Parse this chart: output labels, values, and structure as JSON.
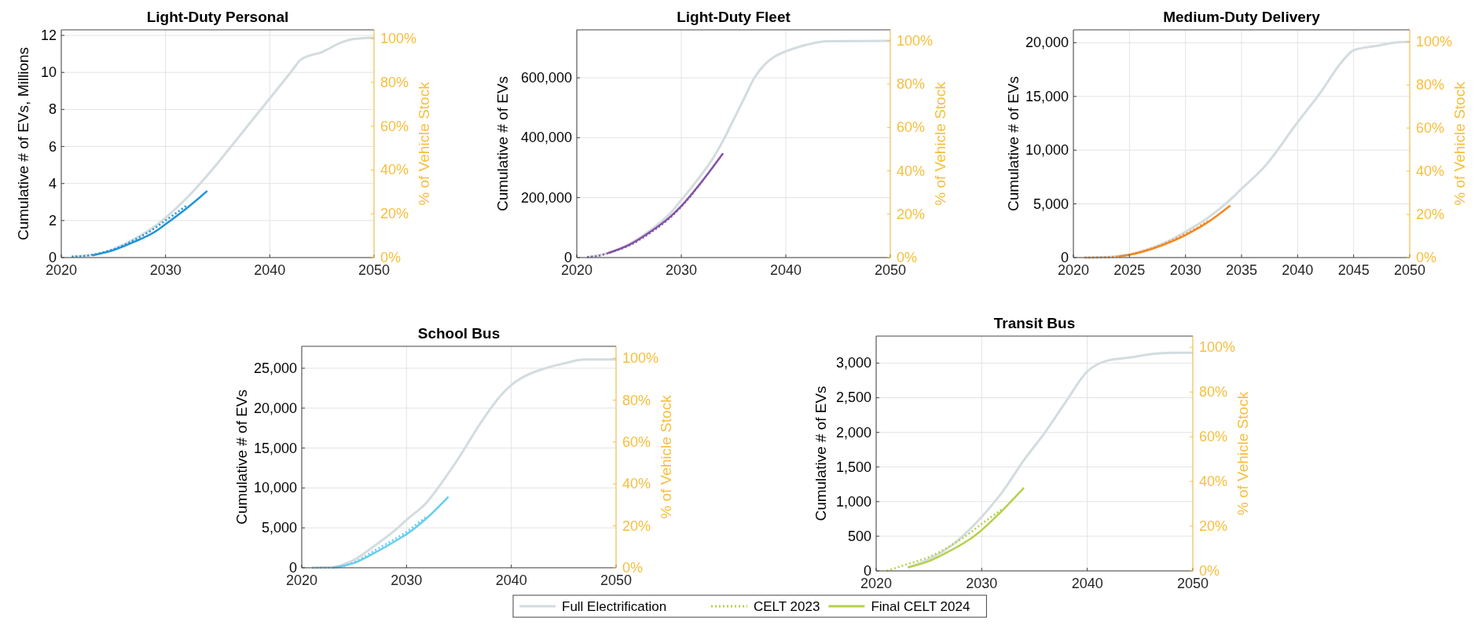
{
  "chart_data": [
    {
      "type": "line",
      "title": "Light-Duty Personal",
      "ylabel": "Cumulative # of EVs, Millions",
      "y2label": "% of Vehicle Stock",
      "xlim": [
        2020,
        2050
      ],
      "xticks": [
        2020,
        2030,
        2040,
        2050
      ],
      "ylim": [
        0,
        12.3
      ],
      "yticks": [
        0,
        2,
        4,
        6,
        8,
        10,
        12
      ],
      "y2lim": [
        0,
        104
      ],
      "y2ticks": [
        {
          "value": 0,
          "label": "0%"
        },
        {
          "value": 20,
          "label": "20%"
        },
        {
          "value": 40,
          "label": "40%"
        },
        {
          "value": 60,
          "label": "60%"
        },
        {
          "value": 80,
          "label": "80%"
        },
        {
          "value": 100,
          "label": "100%"
        }
      ],
      "grid": true,
      "series": [
        {
          "color": "#d3dcdf",
          "line_style": "solid",
          "x": [
            2021,
            2023,
            2025,
            2027,
            2029,
            2030,
            2032,
            2033,
            2035,
            2036,
            2038,
            2040,
            2042,
            2043,
            2045,
            2047,
            2048,
            2050
          ],
          "values": [
            0.05,
            0.15,
            0.45,
            1.0,
            1.7,
            2.15,
            3.2,
            3.8,
            5.1,
            5.8,
            7.2,
            8.6,
            10.0,
            10.7,
            11.1,
            11.65,
            11.8,
            11.88
          ]
        },
        {
          "color": "#1f93d6",
          "line_style": "dotted",
          "x": [
            2021,
            2023,
            2025,
            2027,
            2029,
            2030,
            2031,
            2032
          ],
          "values": [
            0.05,
            0.15,
            0.45,
            0.95,
            1.6,
            2.0,
            2.4,
            2.8
          ]
        },
        {
          "color": "#1f93d6",
          "line_style": "solid",
          "x": [
            2023,
            2025,
            2027,
            2029,
            2030,
            2032,
            2034
          ],
          "values": [
            0.12,
            0.4,
            0.85,
            1.4,
            1.8,
            2.65,
            3.6
          ]
        }
      ]
    },
    {
      "type": "line",
      "title": "Light-Duty Fleet",
      "ylabel": "Cumulative # of EVs",
      "y2label": "% of Vehicle Stock",
      "xlim": [
        2020,
        2050
      ],
      "xticks": [
        2020,
        2030,
        2040,
        2050
      ],
      "ylim": [
        0,
        760000
      ],
      "yticks": [
        0,
        {
          "value": 200000,
          "label": "200,000"
        },
        {
          "value": 400000,
          "label": "400,000"
        },
        {
          "value": 600000,
          "label": "600,000"
        }
      ],
      "y2lim": [
        0,
        105
      ],
      "y2ticks": [
        {
          "value": 0,
          "label": "0%"
        },
        {
          "value": 20,
          "label": "20%"
        },
        {
          "value": 40,
          "label": "40%"
        },
        {
          "value": 60,
          "label": "60%"
        },
        {
          "value": 80,
          "label": "80%"
        },
        {
          "value": 100,
          "label": "100%"
        }
      ],
      "grid": true,
      "series": [
        {
          "color": "#d3dcdf",
          "line_style": "solid",
          "x": [
            2021,
            2023,
            2025,
            2027,
            2029,
            2030,
            2032,
            2033,
            2034,
            2035,
            2036,
            2037,
            2038,
            2039,
            2040,
            2042,
            2044,
            2050
          ],
          "values": [
            2000,
            15000,
            45000,
            90000,
            150000,
            192000,
            280000,
            330000,
            390000,
            460000,
            530000,
            600000,
            645000,
            672000,
            688000,
            710000,
            722000,
            723000
          ]
        },
        {
          "color": "#8352a6",
          "line_style": "dotted",
          "x": [
            2021,
            2022,
            2023,
            2025,
            2027,
            2029,
            2030,
            2031,
            2032
          ],
          "values": [
            2000,
            5000,
            15000,
            40000,
            82000,
            135000,
            170000,
            210000,
            255000
          ]
        },
        {
          "color": "#8352a6",
          "line_style": "solid",
          "x": [
            2023,
            2025,
            2027,
            2029,
            2030,
            2032,
            2034
          ],
          "values": [
            15000,
            42000,
            85000,
            138000,
            172000,
            255000,
            348000
          ]
        }
      ]
    },
    {
      "type": "line",
      "title": "Medium-Duty Delivery",
      "ylabel": "Cumulative # of EVs",
      "y2label": "% of Vehicle Stock",
      "xlim": [
        2020,
        2050
      ],
      "xticks": [
        2020,
        2025,
        2030,
        2035,
        2040,
        2045,
        2050
      ],
      "ylim": [
        0,
        21200
      ],
      "yticks": [
        0,
        {
          "value": 5000,
          "label": "5,000"
        },
        {
          "value": 10000,
          "label": "10,000"
        },
        {
          "value": 15000,
          "label": "15,000"
        },
        {
          "value": 20000,
          "label": "20,000"
        }
      ],
      "y2lim": [
        0,
        105.5
      ],
      "y2ticks": [
        {
          "value": 0,
          "label": "0%"
        },
        {
          "value": 20,
          "label": "20%"
        },
        {
          "value": 40,
          "label": "40%"
        },
        {
          "value": 60,
          "label": "60%"
        },
        {
          "value": 80,
          "label": "80%"
        },
        {
          "value": 100,
          "label": "100%"
        }
      ],
      "grid": true,
      "series": [
        {
          "color": "#d3dcdf",
          "line_style": "solid",
          "x": [
            2021,
            2023,
            2025,
            2027,
            2029,
            2030,
            2032,
            2033,
            2034,
            2035,
            2037,
            2040,
            2042,
            2044,
            2045,
            2047,
            2049,
            2050
          ],
          "values": [
            0,
            50,
            300,
            900,
            1800,
            2400,
            3700,
            4500,
            5400,
            6400,
            8400,
            12600,
            15300,
            18300,
            19300,
            19700,
            20050,
            20090
          ]
        },
        {
          "color": "#f5871f",
          "line_style": "dotted",
          "x": [
            2021,
            2023,
            2025,
            2027,
            2029,
            2030,
            2031,
            2032
          ],
          "values": [
            0,
            30,
            280,
            850,
            1700,
            2200,
            2750,
            3400
          ]
        },
        {
          "color": "#f5871f",
          "line_style": "solid",
          "x": [
            2024,
            2025,
            2027,
            2029,
            2030,
            2032,
            2034
          ],
          "values": [
            100,
            250,
            800,
            1600,
            2100,
            3300,
            4850
          ]
        }
      ]
    },
    {
      "type": "line",
      "title": "School Bus",
      "ylabel": "Cumulative # of EVs",
      "y2label": "% of Vehicle Stock",
      "xlim": [
        2020,
        2050
      ],
      "xticks": [
        2020,
        2030,
        2040,
        2050
      ],
      "ylim": [
        0,
        27750
      ],
      "yticks": [
        0,
        {
          "value": 5000,
          "label": "5,000"
        },
        {
          "value": 10000,
          "label": "10,000"
        },
        {
          "value": 15000,
          "label": "15,000"
        },
        {
          "value": 20000,
          "label": "20,000"
        },
        {
          "value": 25000,
          "label": "25,000"
        }
      ],
      "y2lim": [
        0,
        105.7
      ],
      "y2ticks": [
        {
          "value": 0,
          "label": "0%"
        },
        {
          "value": 20,
          "label": "20%"
        },
        {
          "value": 40,
          "label": "40%"
        },
        {
          "value": 60,
          "label": "60%"
        },
        {
          "value": 80,
          "label": "80%"
        },
        {
          "value": 100,
          "label": "100%"
        }
      ],
      "grid": true,
      "series": [
        {
          "color": "#d3dcdf",
          "line_style": "solid",
          "x": [
            2021,
            2023,
            2025,
            2027,
            2029,
            2030,
            2032,
            2033,
            2035,
            2037,
            2039,
            2040,
            2041,
            2043,
            2045,
            2047,
            2050
          ],
          "values": [
            0,
            100,
            1000,
            2800,
            4800,
            6000,
            8300,
            10000,
            13800,
            18000,
            21600,
            22900,
            23800,
            24900,
            25600,
            26100,
            26100
          ]
        },
        {
          "color": "#67cdf2",
          "line_style": "dotted",
          "x": [
            2021,
            2023,
            2025,
            2027,
            2029,
            2030,
            2031,
            2032
          ],
          "values": [
            0,
            0,
            700,
            2200,
            3700,
            4500,
            5500,
            6500
          ]
        },
        {
          "color": "#67cdf2",
          "line_style": "solid",
          "x": [
            2023,
            2025,
            2027,
            2029,
            2030,
            2032,
            2034
          ],
          "values": [
            0,
            600,
            1900,
            3400,
            4200,
            6300,
            8900
          ]
        }
      ]
    },
    {
      "type": "line",
      "title": "Transit Bus",
      "ylabel": "Cumulative # of EVs",
      "y2label": "% of Vehicle Stock",
      "xlim": [
        2020,
        2050
      ],
      "xticks": [
        2020,
        2030,
        2040,
        2050
      ],
      "ylim": [
        0,
        3390
      ],
      "yticks": [
        0,
        500,
        {
          "value": 1000,
          "label": "1,000"
        },
        {
          "value": 1500,
          "label": "1,500"
        },
        {
          "value": 2000,
          "label": "2,000"
        },
        {
          "value": 2500,
          "label": "2,500"
        },
        {
          "value": 3000,
          "label": "3,000"
        }
      ],
      "y2lim": [
        0,
        105
      ],
      "y2ticks": [
        {
          "value": 0,
          "label": "0%"
        },
        {
          "value": 20,
          "label": "20%"
        },
        {
          "value": 40,
          "label": "40%"
        },
        {
          "value": 60,
          "label": "60%"
        },
        {
          "value": 80,
          "label": "80%"
        },
        {
          "value": 100,
          "label": "100%"
        }
      ],
      "grid": true,
      "legend": "bottom",
      "series": [
        {
          "name": "Full Electrification",
          "color": "#d3dcdf",
          "line_style": "solid",
          "x": [
            2023,
            2025,
            2027,
            2029,
            2030,
            2032,
            2034,
            2036,
            2038,
            2040,
            2042,
            2044,
            2046,
            2048,
            2050
          ],
          "values": [
            50,
            170,
            350,
            620,
            780,
            1150,
            1600,
            2000,
            2450,
            2880,
            3040,
            3080,
            3130,
            3150,
            3150
          ]
        },
        {
          "name": "CELT 2023",
          "color": "#b5d14b",
          "line_style": "dotted",
          "x": [
            2021,
            2023,
            2025,
            2027,
            2029,
            2030,
            2031,
            2032
          ],
          "values": [
            0,
            100,
            200,
            360,
            560,
            680,
            790,
            900
          ]
        },
        {
          "name": "Final CELT 2024",
          "color": "#b5d14b",
          "line_style": "solid",
          "x": [
            2023,
            2025,
            2027,
            2029,
            2030,
            2032,
            2034
          ],
          "values": [
            50,
            140,
            290,
            470,
            590,
            880,
            1200
          ]
        }
      ]
    }
  ]
}
